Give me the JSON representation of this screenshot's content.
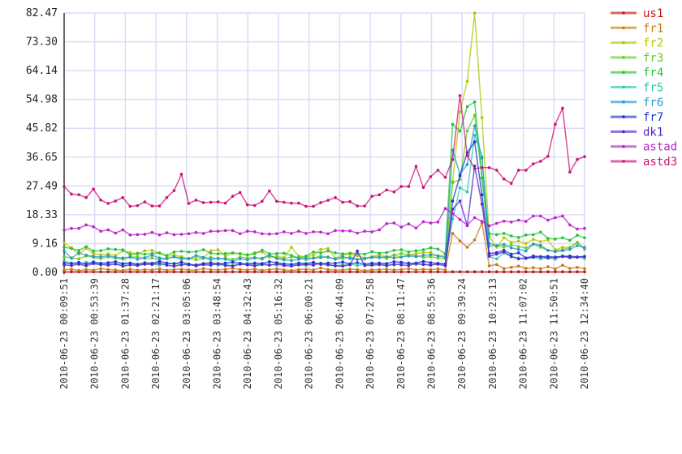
{
  "chart_data": {
    "type": "line",
    "title": "",
    "xlabel": "",
    "ylabel": "",
    "ylim": [
      0,
      82.47
    ],
    "yticks": [
      "0.00",
      "9.16",
      "18.33",
      "27.49",
      "36.65",
      "45.82",
      "54.98",
      "64.14",
      "73.30",
      "82.47"
    ],
    "x_range": [
      "2010-06-23 00:09:51",
      "2010-06-23 12:34:40"
    ],
    "xticks": [
      "2010-06-23 00:09:51",
      "2010-06-23 00:53:39",
      "2010-06-23 01:37:28",
      "2010-06-23 02:21:17",
      "2010-06-23 03:05:06",
      "2010-06-23 03:48:54",
      "2010-06-23 04:32:43",
      "2010-06-23 05:16:32",
      "2010-06-23 06:00:21",
      "2010-06-23 06:44:09",
      "2010-06-23 07:27:58",
      "2010-06-23 08:11:47",
      "2010-06-23 08:55:36",
      "2010-06-23 09:39:24",
      "2010-06-23 10:23:13",
      "2010-06-23 11:07:02",
      "2010-06-23 11:50:51",
      "2010-06-23 12:34:40"
    ],
    "grid": true,
    "legend_position": "right",
    "series": [
      {
        "name": "us1",
        "color": "#cc1111",
        "values": [
          0.2,
          0.2,
          0.2,
          0.2,
          0.2,
          0.2,
          0.2,
          0.2,
          0.2,
          0.2,
          0.2,
          0.2,
          0.2,
          0.2,
          0.2,
          0.2,
          0.2,
          0.2,
          0.2,
          0.2,
          0.2,
          0.2,
          0.2,
          0.2,
          0.2,
          0.2,
          0.2,
          0.2,
          0.2,
          0.2,
          0.2,
          0.2,
          0.2,
          0.2,
          0.2,
          0.2,
          0.2,
          0.2,
          0.2,
          0.2,
          0.2,
          0.2,
          0.2,
          0.2,
          0.2,
          0.2,
          0.2,
          0.2,
          0.2,
          0.2,
          0.2,
          0.2,
          0.2,
          0.2,
          0.2,
          0.2,
          0.2,
          0.2,
          0.2,
          0.2,
          0.2,
          0.2,
          0.2,
          0.2,
          0.2,
          0.2,
          0.2,
          0.2,
          0.2,
          0.2,
          0.2,
          0.2
        ]
      },
      {
        "name": "fr1",
        "color": "#cc7711",
        "values": [
          0.8,
          1.0,
          0.6,
          0.9,
          0.7,
          1.2,
          0.9,
          0.8,
          0.6,
          1.0,
          0.7,
          0.9,
          0.8,
          1.1,
          0.7,
          0.9,
          1.0,
          0.8,
          0.7,
          1.2,
          0.9,
          0.8,
          1.0,
          1.3,
          0.9,
          0.8,
          1.0,
          0.7,
          0.9,
          1.1,
          0.8,
          0.6,
          0.9,
          1.0,
          0.8,
          1.4,
          0.9,
          0.7,
          0.8,
          1.0,
          0.9,
          0.6,
          0.8,
          0.9,
          1.0,
          0.8,
          0.9,
          1.2,
          0.8,
          1.0,
          0.9,
          1.1,
          0.8,
          12.4,
          10.0,
          8.0,
          10.3,
          15.7,
          2.1,
          2.5,
          1.2,
          1.6,
          2.0,
          1.3,
          1.5,
          1.2,
          1.8,
          1.1,
          2.3,
          1.3,
          1.6,
          1.2
        ]
      },
      {
        "name": "fr2",
        "color": "#b5c400",
        "values": [
          9.3,
          7.8,
          5.8,
          7.6,
          6.0,
          5.6,
          5.9,
          5.4,
          6.8,
          6.3,
          5.8,
          6.9,
          7.0,
          6.1,
          5.0,
          5.6,
          5.0,
          4.3,
          4.9,
          4.6,
          6.9,
          7.2,
          5.2,
          6.1,
          6.0,
          5.4,
          6.3,
          6.5,
          4.8,
          5.1,
          4.7,
          8.0,
          5.2,
          4.9,
          5.5,
          7.3,
          7.6,
          4.5,
          5.6,
          5.8,
          5.3,
          4.6,
          5.0,
          5.6,
          4.9,
          5.4,
          4.9,
          5.6,
          6.0,
          6.3,
          6.4,
          5.0,
          5.6,
          29.0,
          51.0,
          60.8,
          82.47,
          49.2,
          11.4,
          8.0,
          11.0,
          9.6,
          10.0,
          9.2,
          10.5,
          9.8,
          10.3,
          7.2,
          8.0,
          8.0,
          9.6,
          7.5
        ]
      },
      {
        "name": "fr3",
        "color": "#66cc22",
        "values": [
          5.0,
          4.6,
          4.3,
          5.2,
          4.8,
          4.4,
          4.9,
          4.5,
          4.2,
          4.8,
          5.0,
          4.4,
          4.6,
          4.1,
          4.3,
          4.9,
          4.2,
          4.5,
          4.0,
          4.4,
          4.8,
          4.3,
          4.6,
          4.1,
          4.9,
          4.5,
          4.8,
          4.2,
          5.3,
          4.6,
          4.4,
          4.9,
          4.7,
          4.0,
          4.6,
          5.2,
          4.8,
          4.3,
          4.4,
          4.9,
          4.1,
          4.5,
          4.8,
          5.0,
          4.4,
          5.6,
          6.0,
          5.6,
          5.3,
          4.8,
          5.0,
          4.6,
          4.4,
          28.5,
          29.5,
          45.0,
          50.0,
          30.0,
          8.3,
          8.5,
          8.0,
          8.8,
          8.2,
          7.8,
          9.0,
          8.0,
          7.0,
          6.8,
          7.2,
          7.9,
          9.5,
          7.3
        ]
      },
      {
        "name": "fr4",
        "color": "#22c433",
        "values": [
          8.0,
          7.6,
          7.0,
          8.2,
          6.8,
          6.9,
          7.5,
          7.3,
          7.2,
          5.6,
          6.1,
          5.8,
          6.0,
          6.2,
          5.4,
          6.5,
          6.7,
          6.5,
          6.6,
          7.2,
          6.1,
          5.9,
          6.0,
          6.2,
          5.9,
          5.6,
          5.9,
          7.1,
          5.9,
          6.0,
          6.1,
          5.4,
          4.6,
          5.2,
          6.5,
          6.2,
          6.8,
          6.2,
          5.9,
          6.1,
          6.0,
          5.8,
          6.6,
          6.1,
          6.3,
          7.0,
          7.2,
          6.5,
          6.9,
          7.2,
          7.8,
          7.4,
          6.0,
          47.1,
          44.9,
          52.7,
          54.2,
          30.0,
          12.3,
          12.0,
          12.4,
          11.6,
          11.1,
          11.9,
          12.0,
          12.8,
          10.8,
          10.6,
          11.0,
          10.2,
          11.8,
          11.0
        ]
      },
      {
        "name": "fr5",
        "color": "#22ccaa",
        "values": [
          3.5,
          3.0,
          2.6,
          3.2,
          2.8,
          2.4,
          2.9,
          2.6,
          2.5,
          2.9,
          2.4,
          2.6,
          2.8,
          2.3,
          2.7,
          2.9,
          2.5,
          2.4,
          2.1,
          2.6,
          2.8,
          2.3,
          2.5,
          2.2,
          2.6,
          2.9,
          2.4,
          2.8,
          2.5,
          2.3,
          2.7,
          2.6,
          2.4,
          2.2,
          2.9,
          2.5,
          2.3,
          2.1,
          2.4,
          2.6,
          2.2,
          2.5,
          2.8,
          2.4,
          2.6,
          2.3,
          2.9,
          3.1,
          2.5,
          2.7,
          2.4,
          2.8,
          2.6,
          17.0,
          26.9,
          25.6,
          43.6,
          36.8,
          5.0,
          4.3,
          6.2,
          5.1,
          4.6,
          4.4,
          4.8,
          4.3,
          4.6,
          4.2,
          5.3,
          4.9,
          5.0,
          4.4
        ]
      },
      {
        "name": "fr6",
        "color": "#2299cc",
        "values": [
          6.8,
          4.5,
          6.2,
          5.5,
          5.1,
          4.9,
          5.3,
          4.8,
          4.6,
          4.9,
          4.2,
          4.7,
          5.5,
          4.6,
          4.4,
          5.0,
          4.5,
          4.3,
          5.4,
          4.8,
          4.1,
          4.5,
          4.2,
          3.5,
          4.3,
          4.0,
          4.6,
          4.5,
          5.5,
          4.4,
          4.0,
          3.8,
          4.2,
          4.6,
          4.5,
          4.7,
          4.9,
          4.2,
          5.0,
          4.4,
          4.1,
          4.3,
          4.8,
          4.7,
          5.0,
          4.6,
          4.9,
          5.2,
          5.0,
          5.4,
          5.6,
          5.3,
          4.8,
          38.9,
          31.2,
          34.3,
          46.6,
          36.3,
          9.2,
          8.5,
          8.9,
          7.8,
          7.3,
          6.8,
          9.0,
          8.6,
          7.0,
          6.6,
          6.9,
          7.3,
          8.5,
          8.0
        ]
      },
      {
        "name": "fr7",
        "color": "#1a33cc",
        "values": [
          3.0,
          2.8,
          3.2,
          2.6,
          3.3,
          2.9,
          3.1,
          3.4,
          2.8,
          3.0,
          2.6,
          3.1,
          2.9,
          3.5,
          3.0,
          2.7,
          3.3,
          2.5,
          2.4,
          2.8,
          3.1,
          2.7,
          3.0,
          3.2,
          2.9,
          2.6,
          3.0,
          2.8,
          3.4,
          3.1,
          2.7,
          2.5,
          3.0,
          2.8,
          3.2,
          2.6,
          3.0,
          2.9,
          3.3,
          2.7,
          3.1,
          2.6,
          2.9,
          3.0,
          2.8,
          3.4,
          3.2,
          2.8,
          3.0,
          3.5,
          3.1,
          2.9,
          2.7,
          22.7,
          30.7,
          38.1,
          41.5,
          24.7,
          6.0,
          6.3,
          7.0,
          5.8,
          6.2,
          4.6,
          5.2,
          5.0,
          5.1,
          4.8,
          5.0,
          5.2,
          4.9,
          5.1
        ]
      },
      {
        "name": "dk1",
        "color": "#5522cc",
        "values": [
          2.4,
          2.2,
          2.6,
          2.1,
          2.8,
          2.5,
          2.3,
          2.7,
          2.0,
          2.4,
          2.2,
          2.6,
          2.5,
          2.9,
          2.3,
          2.0,
          2.4,
          2.7,
          2.1,
          2.5,
          2.3,
          2.8,
          2.2,
          2.0,
          2.6,
          2.4,
          2.1,
          2.5,
          2.3,
          2.7,
          2.2,
          2.0,
          2.4,
          2.6,
          2.3,
          2.9,
          2.5,
          2.1,
          2.0,
          2.4,
          6.8,
          2.2,
          2.3,
          2.5,
          2.1,
          2.6,
          2.4,
          2.2,
          2.8,
          2.5,
          2.3,
          2.6,
          2.1,
          20.1,
          22.7,
          14.9,
          33.8,
          21.7,
          5.2,
          5.8,
          6.5,
          5.0,
          4.3,
          4.5,
          4.8,
          5.0,
          4.6,
          4.9,
          5.1,
          4.7,
          4.8,
          5.0
        ]
      },
      {
        "name": "astad",
        "color": "#bb22cc",
        "values": [
          13.4,
          14.0,
          14.0,
          15.1,
          14.5,
          13.1,
          13.5,
          12.5,
          13.5,
          11.9,
          12.0,
          12.1,
          12.7,
          11.9,
          12.6,
          12.0,
          12.1,
          12.3,
          12.7,
          12.4,
          13.1,
          13.1,
          13.3,
          13.3,
          12.3,
          13.1,
          12.9,
          12.3,
          12.2,
          12.3,
          12.9,
          12.4,
          13.1,
          12.4,
          12.9,
          12.8,
          12.3,
          13.3,
          13.2,
          13.2,
          12.5,
          13.1,
          12.9,
          13.5,
          15.5,
          15.7,
          14.4,
          15.4,
          14.1,
          16.1,
          15.7,
          16.0,
          20.3,
          18.7,
          16.8,
          15.1,
          17.4,
          16.2,
          14.8,
          15.6,
          16.3,
          16.0,
          16.6,
          16.2,
          17.9,
          17.9,
          16.6,
          17.4,
          17.9,
          15.1,
          13.8,
          14.0
        ]
      },
      {
        "name": "astd3",
        "color": "#cc1177",
        "values": [
          27.3,
          24.9,
          24.7,
          23.8,
          26.5,
          23.0,
          21.9,
          22.7,
          23.8,
          21.0,
          21.2,
          22.4,
          21.1,
          21.1,
          23.8,
          26.0,
          31.2,
          21.9,
          23.0,
          22.2,
          22.3,
          22.4,
          22.0,
          24.2,
          25.4,
          21.5,
          21.3,
          22.6,
          25.9,
          22.6,
          22.3,
          22.0,
          22.0,
          21.0,
          21.0,
          22.2,
          22.9,
          23.8,
          22.3,
          22.5,
          21.1,
          21.1,
          24.2,
          24.7,
          26.2,
          25.6,
          27.3,
          27.3,
          33.7,
          27.0,
          30.4,
          32.5,
          30.2,
          35.9,
          56.2,
          37.2,
          33.0,
          33.3,
          33.3,
          32.5,
          29.7,
          28.3,
          32.5,
          32.5,
          34.5,
          35.3,
          36.9,
          47.1,
          52.2,
          31.9,
          35.9,
          36.8
        ]
      }
    ]
  }
}
